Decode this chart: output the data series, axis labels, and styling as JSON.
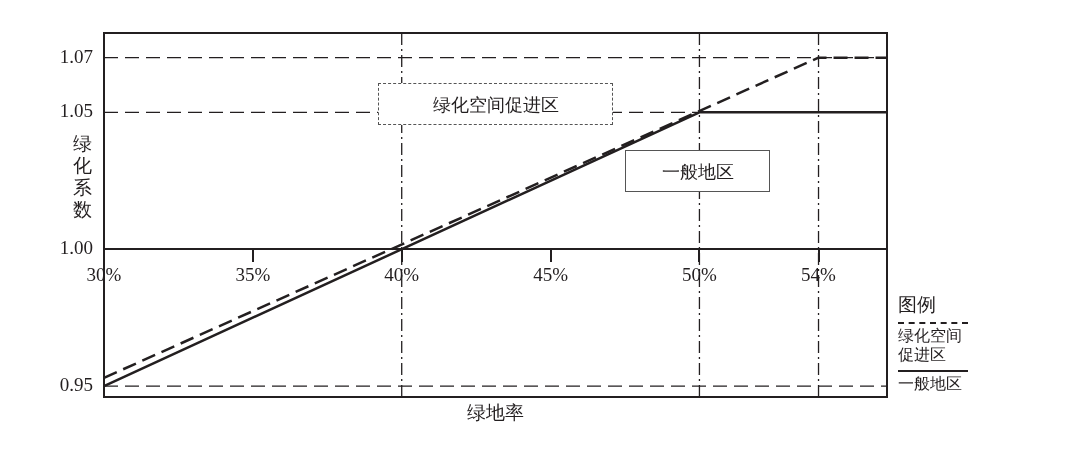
{
  "chart_data": {
    "type": "line",
    "xlabel": "绿地率",
    "ylabel": "绿化系数",
    "legend_title": "图例",
    "legend": "right",
    "grid": false,
    "marker": "none",
    "xlim": [
      30,
      56.3
    ],
    "ylim": [
      0.946,
      1.079
    ],
    "xticks": [
      {
        "value": 30,
        "label": "30%"
      },
      {
        "value": 35,
        "label": "35%"
      },
      {
        "value": 40,
        "label": "40%"
      },
      {
        "value": 45,
        "label": "45%"
      },
      {
        "value": 50,
        "label": "50%"
      },
      {
        "value": 54,
        "label": "54%"
      }
    ],
    "yticks": [
      {
        "value": 0.95,
        "label": "0.95"
      },
      {
        "value": 1.0,
        "label": "1.00"
      },
      {
        "value": 1.05,
        "label": "1.05"
      },
      {
        "value": 1.07,
        "label": "1.07"
      }
    ],
    "series": [
      {
        "name": "绿化空间促进区",
        "color": "#231f20",
        "line_style": "dashed",
        "x": [
          30,
          54,
          56.3
        ],
        "values": [
          0.953,
          1.07,
          1.07
        ]
      },
      {
        "name": "一般地区",
        "color": "#231f20",
        "line_style": "solid",
        "x": [
          30,
          50,
          56.3
        ],
        "values": [
          0.95,
          1.05,
          1.05
        ]
      }
    ],
    "ref_lines": [
      {
        "axis": "y",
        "value": 1.07,
        "line_style": "dashed",
        "color": "#231f20"
      },
      {
        "axis": "y",
        "value": 1.05,
        "line_style": "dashed",
        "color": "#231f20"
      },
      {
        "axis": "y",
        "value": 0.95,
        "line_style": "dashed",
        "color": "#231f20"
      },
      {
        "axis": "x",
        "value": 40,
        "line_style": "dotted",
        "color": "#231f20"
      },
      {
        "axis": "x",
        "value": 50,
        "line_style": "dotted",
        "color": "#231f20"
      },
      {
        "axis": "x",
        "value": 54,
        "line_style": "dotted",
        "color": "#231f20"
      }
    ],
    "annotations": [
      "绿化空间促进区",
      "一般地区"
    ]
  }
}
